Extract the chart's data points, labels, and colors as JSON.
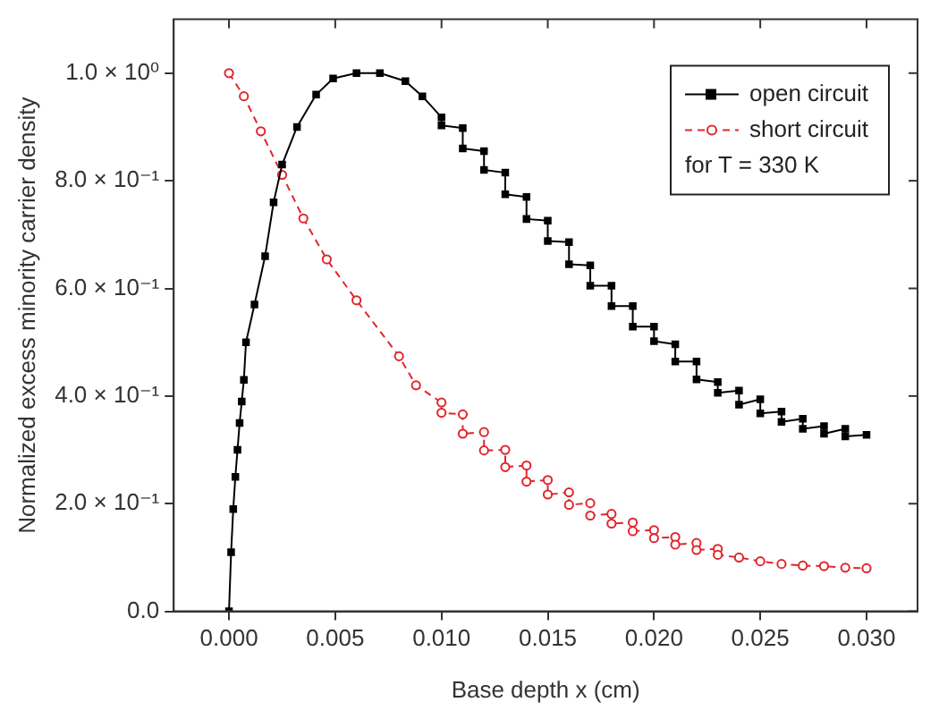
{
  "chart_data": {
    "type": "line",
    "xlabel": "Base depth x (cm)",
    "ylabel": "Normalized excess minority carrier density",
    "xlim": [
      -0.0026,
      0.0324
    ],
    "xticks": [
      {
        "value": 0,
        "label": "0.000"
      },
      {
        "value": 0.005,
        "label": "0.005"
      },
      {
        "value": 0.01,
        "label": "0.010"
      },
      {
        "value": 0.015,
        "label": "0.015"
      },
      {
        "value": 0.02,
        "label": "0.020"
      },
      {
        "value": 0.025,
        "label": "0.025"
      },
      {
        "value": 0.03,
        "label": "0.030"
      }
    ],
    "ylim": [
      0,
      1.1
    ],
    "yticks": [
      {
        "value": 0,
        "label": "0.0"
      },
      {
        "value": 0.2,
        "label": "2.0 × 10⁻¹"
      },
      {
        "value": 0.4,
        "label": "4.0 × 10⁻¹"
      },
      {
        "value": 0.6,
        "label": "6.0 × 10⁻¹"
      },
      {
        "value": 0.8,
        "label": "8.0 × 10⁻¹"
      },
      {
        "value": 1.0,
        "label": "1.0 × 10⁰"
      }
    ],
    "grid": false,
    "legend": "top right",
    "annotations": [
      "for T = 330 K"
    ],
    "series": [
      {
        "name": "open circuit",
        "color": "#000000",
        "marker": "square",
        "line_style": "solid",
        "x": [
          0,
          0.0001,
          0.0002,
          0.0003,
          0.0004,
          0.0005,
          0.0006,
          0.0007,
          0.0008,
          0.0012,
          0.0017,
          0.0021,
          0.0025,
          0.0032,
          0.0041,
          0.0049,
          0.006,
          0.0071,
          0.0083,
          0.0091,
          0.01,
          0.01,
          0.011,
          0.011,
          0.012,
          0.012,
          0.013,
          0.013,
          0.014,
          0.014,
          0.015,
          0.015,
          0.016,
          0.016,
          0.017,
          0.017,
          0.018,
          0.018,
          0.019,
          0.019,
          0.02,
          0.02,
          0.021,
          0.021,
          0.022,
          0.022,
          0.023,
          0.023,
          0.024,
          0.024,
          0.025,
          0.025,
          0.026,
          0.026,
          0.027,
          0.027,
          0.028,
          0.028,
          0.029,
          0.029,
          0.03
        ],
        "values": [
          0.0,
          0.11,
          0.19,
          0.25,
          0.3,
          0.35,
          0.39,
          0.43,
          0.5,
          0.57,
          0.66,
          0.76,
          0.83,
          0.9,
          0.96,
          0.99,
          1.0,
          1.0,
          0.985,
          0.957,
          0.918,
          0.903,
          0.898,
          0.86,
          0.855,
          0.82,
          0.815,
          0.775,
          0.77,
          0.729,
          0.726,
          0.688,
          0.686,
          0.645,
          0.643,
          0.605,
          0.605,
          0.567,
          0.567,
          0.529,
          0.529,
          0.502,
          0.496,
          0.464,
          0.464,
          0.431,
          0.426,
          0.406,
          0.41,
          0.384,
          0.394,
          0.368,
          0.371,
          0.352,
          0.358,
          0.339,
          0.344,
          0.33,
          0.339,
          0.325,
          0.328
        ]
      },
      {
        "name": "short circuit",
        "color": "#e0262c",
        "marker": "circle",
        "line_style": "dashed",
        "x": [
          0,
          0.0007,
          0.0015,
          0.0025,
          0.0035,
          0.0046,
          0.006,
          0.008,
          0.0088,
          0.01,
          0.01,
          0.011,
          0.011,
          0.012,
          0.012,
          0.013,
          0.013,
          0.014,
          0.014,
          0.015,
          0.015,
          0.016,
          0.016,
          0.017,
          0.017,
          0.018,
          0.018,
          0.019,
          0.019,
          0.02,
          0.02,
          0.021,
          0.021,
          0.022,
          0.022,
          0.023,
          0.023,
          0.024,
          0.025,
          0.026,
          0.027,
          0.028,
          0.029,
          0.03
        ],
        "values": [
          1.0,
          0.957,
          0.892,
          0.811,
          0.73,
          0.654,
          0.578,
          0.474,
          0.42,
          0.388,
          0.369,
          0.366,
          0.33,
          0.333,
          0.299,
          0.3,
          0.268,
          0.271,
          0.241,
          0.244,
          0.217,
          0.221,
          0.198,
          0.201,
          0.178,
          0.181,
          0.163,
          0.165,
          0.149,
          0.151,
          0.136,
          0.138,
          0.124,
          0.127,
          0.114,
          0.116,
          0.105,
          0.1,
          0.093,
          0.088,
          0.085,
          0.084,
          0.081,
          0.08
        ]
      }
    ]
  }
}
